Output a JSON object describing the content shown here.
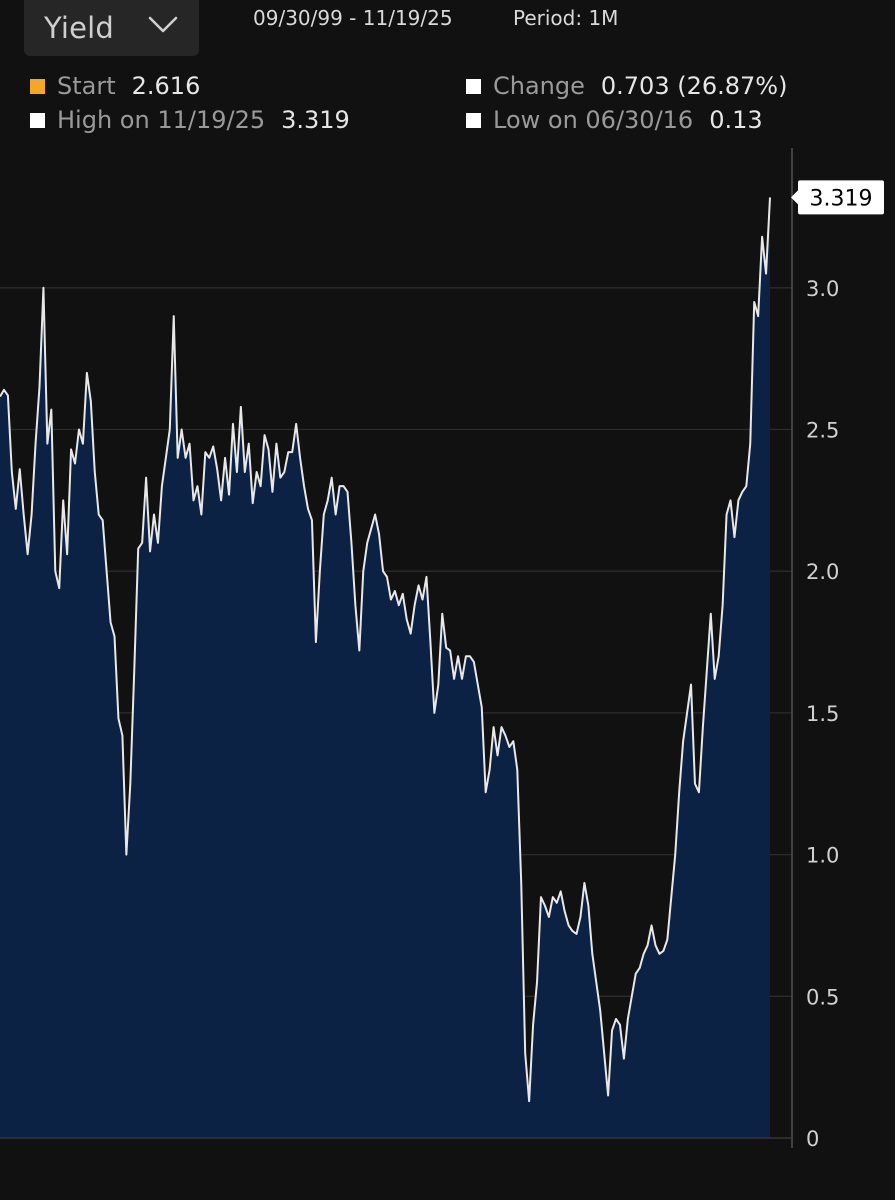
{
  "header": {
    "series_label": "Yield",
    "date_range": "09/30/99 - 11/19/25",
    "period": "Period: 1M"
  },
  "stats": {
    "start_label": "Start",
    "start_value": "2.616",
    "start_color": "#f5a623",
    "change_label": "Change",
    "change_value": "0.703 (26.87%)",
    "high_label": "High on 11/19/25",
    "high_value": "3.319",
    "low_label": "Low on 06/30/16",
    "low_value": "0.13",
    "marker_color": "#ffffff"
  },
  "chart_data": {
    "type": "area",
    "x_range": [
      "09/30/99",
      "11/19/25"
    ],
    "ylim": [
      0,
      3.319
    ],
    "y_ticks": [
      "0",
      "0.5",
      "1.0",
      "1.5",
      "2.0",
      "2.5",
      "3.0"
    ],
    "grid": true,
    "last_value_label": "3.319",
    "line_color": "#e8e8e8",
    "fill_color": "#0c2244",
    "values": [
      2.616,
      2.64,
      2.62,
      2.35,
      2.22,
      2.36,
      2.2,
      2.06,
      2.2,
      2.45,
      2.65,
      3.0,
      2.45,
      2.57,
      2.0,
      1.94,
      2.25,
      2.06,
      2.43,
      2.38,
      2.5,
      2.45,
      2.7,
      2.6,
      2.35,
      2.2,
      2.18,
      2.0,
      1.82,
      1.77,
      1.48,
      1.42,
      1.0,
      1.25,
      1.65,
      2.08,
      2.1,
      2.33,
      2.07,
      2.2,
      2.1,
      2.3,
      2.4,
      2.5,
      2.9,
      2.4,
      2.5,
      2.4,
      2.45,
      2.25,
      2.3,
      2.2,
      2.42,
      2.4,
      2.44,
      2.36,
      2.25,
      2.4,
      2.27,
      2.52,
      2.35,
      2.58,
      2.35,
      2.45,
      2.24,
      2.35,
      2.3,
      2.48,
      2.43,
      2.28,
      2.45,
      2.33,
      2.35,
      2.42,
      2.42,
      2.52,
      2.4,
      2.3,
      2.22,
      2.18,
      1.75,
      2.0,
      2.2,
      2.25,
      2.33,
      2.2,
      2.3,
      2.3,
      2.28,
      2.1,
      1.88,
      1.72,
      2.0,
      2.1,
      2.15,
      2.2,
      2.13,
      2.0,
      1.98,
      1.9,
      1.93,
      1.88,
      1.92,
      1.83,
      1.78,
      1.88,
      1.95,
      1.9,
      1.98,
      1.75,
      1.5,
      1.6,
      1.85,
      1.73,
      1.72,
      1.62,
      1.7,
      1.62,
      1.7,
      1.7,
      1.68,
      1.6,
      1.52,
      1.22,
      1.3,
      1.45,
      1.35,
      1.45,
      1.42,
      1.38,
      1.4,
      1.3,
      0.9,
      0.3,
      0.13,
      0.4,
      0.55,
      0.85,
      0.82,
      0.78,
      0.85,
      0.83,
      0.87,
      0.8,
      0.75,
      0.73,
      0.72,
      0.78,
      0.9,
      0.82,
      0.65,
      0.55,
      0.45,
      0.3,
      0.15,
      0.38,
      0.42,
      0.4,
      0.28,
      0.42,
      0.5,
      0.58,
      0.6,
      0.65,
      0.68,
      0.75,
      0.68,
      0.65,
      0.66,
      0.7,
      0.85,
      1.0,
      1.22,
      1.4,
      1.5,
      1.6,
      1.25,
      1.22,
      1.45,
      1.65,
      1.85,
      1.62,
      1.7,
      1.88,
      2.2,
      2.25,
      2.12,
      2.25,
      2.28,
      2.3,
      2.45,
      2.95,
      2.9,
      3.18,
      3.05,
      3.319
    ]
  }
}
